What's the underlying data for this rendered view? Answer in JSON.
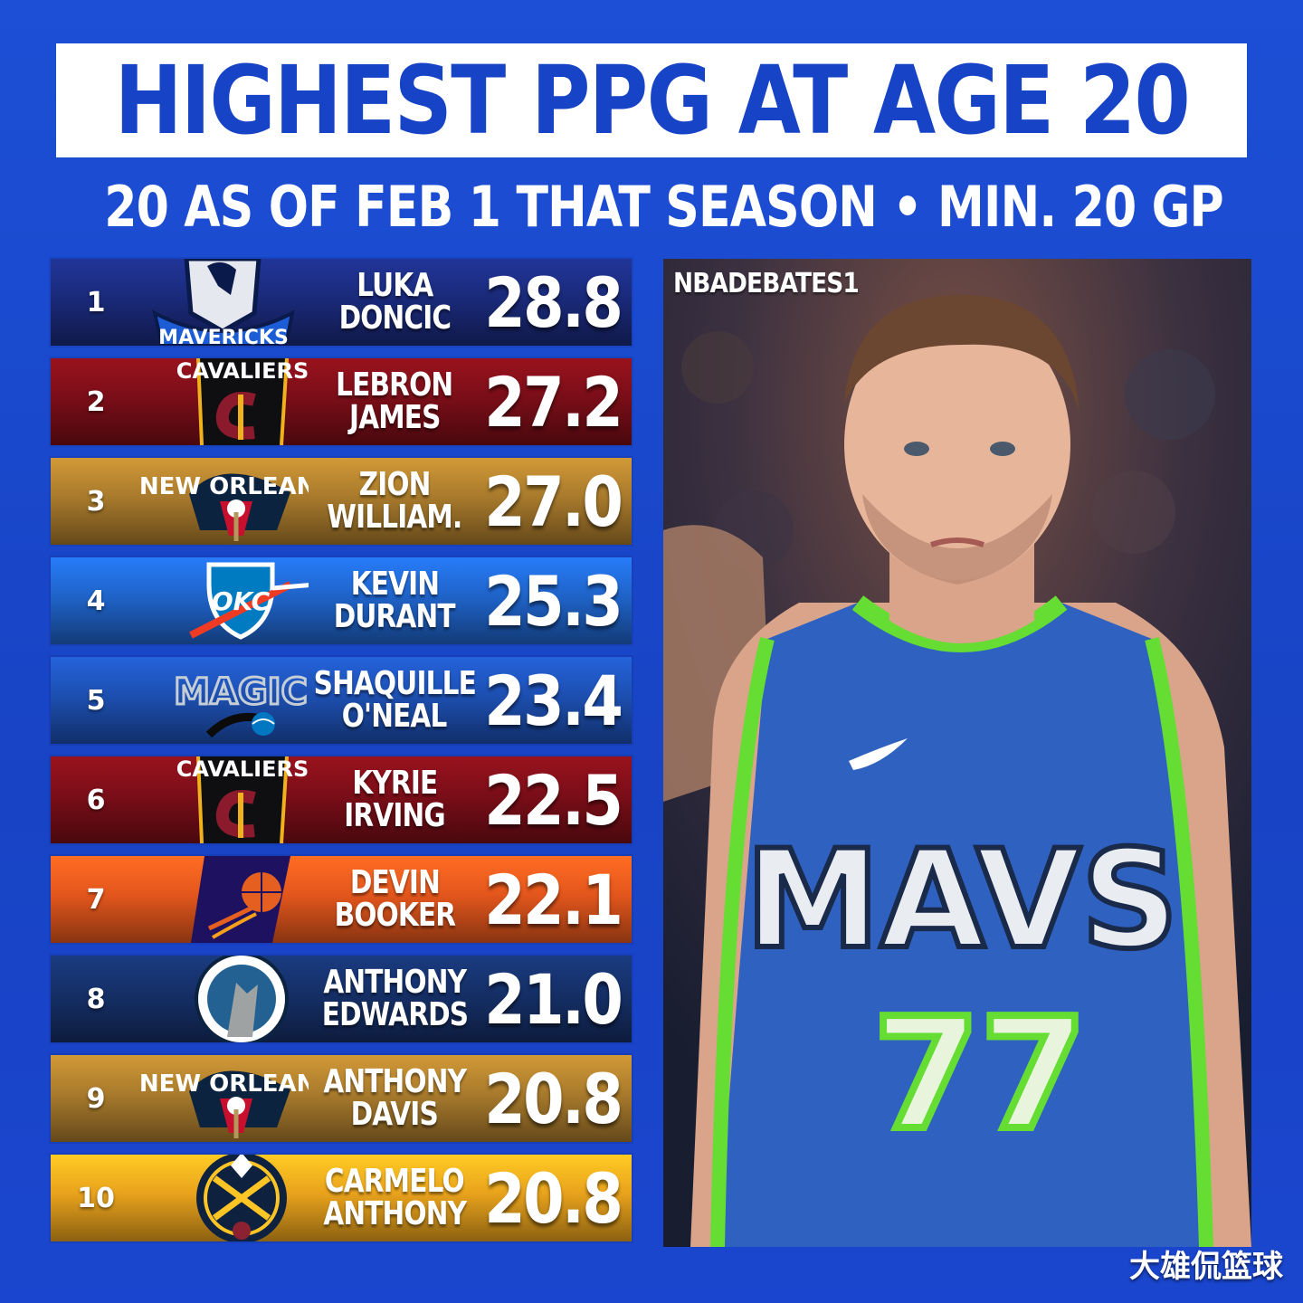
{
  "header": {
    "title": "HIGHEST PPG AT AGE 20",
    "subtitle": "20 AS OF FEB 1 THAT SEASON • MIN. 20 GP"
  },
  "rows": [
    {
      "rank": "1",
      "line1": "LUKA",
      "line2": "DONCIC",
      "ppg": "28.8",
      "team_logo": "mavericks-logo",
      "color": "#1a2a7a"
    },
    {
      "rank": "2",
      "line1": "LEBRON",
      "line2": "JAMES",
      "ppg": "27.2",
      "team_logo": "cavaliers-logo",
      "color": "#7a0e18"
    },
    {
      "rank": "3",
      "line1": "ZION",
      "line2": "WILLIAM.",
      "ppg": "27.0",
      "team_logo": "pelicans-logo",
      "color": "#a87a2c"
    },
    {
      "rank": "4",
      "line1": "KEVIN",
      "line2": "DURANT",
      "ppg": "25.3",
      "team_logo": "thunder-logo",
      "color": "#1f63c8"
    },
    {
      "rank": "5",
      "line1": "SHAQUILLE",
      "line2": "O'NEAL",
      "ppg": "23.4",
      "team_logo": "magic-logo",
      "color": "#1d4fb0"
    },
    {
      "rank": "6",
      "line1": "KYRIE",
      "line2": "IRVING",
      "ppg": "22.5",
      "team_logo": "cavaliers-logo",
      "color": "#7a0e18"
    },
    {
      "rank": "7",
      "line1": "DEVIN",
      "line2": "BOOKER",
      "ppg": "22.1",
      "team_logo": "suns-logo",
      "color": "#e3561c"
    },
    {
      "rank": "8",
      "line1": "ANTHONY",
      "line2": "EDWARDS",
      "ppg": "21.0",
      "team_logo": "timberwolves-logo",
      "color": "#152f66"
    },
    {
      "rank": "9",
      "line1": "ANTHONY",
      "line2": "DAVIS",
      "ppg": "20.8",
      "team_logo": "pelicans-logo",
      "color": "#a87a2c"
    },
    {
      "rank": "10",
      "line1": "CARMELO",
      "line2": "ANTHONY",
      "ppg": "20.8",
      "team_logo": "nuggets-logo",
      "color": "#e8a21c"
    }
  ],
  "photo": {
    "watermark": "NBADEBATES1",
    "jersey_text": "MAVS",
    "jersey_number": "77"
  },
  "footer": {
    "corner_text": "大雄侃篮球"
  }
}
